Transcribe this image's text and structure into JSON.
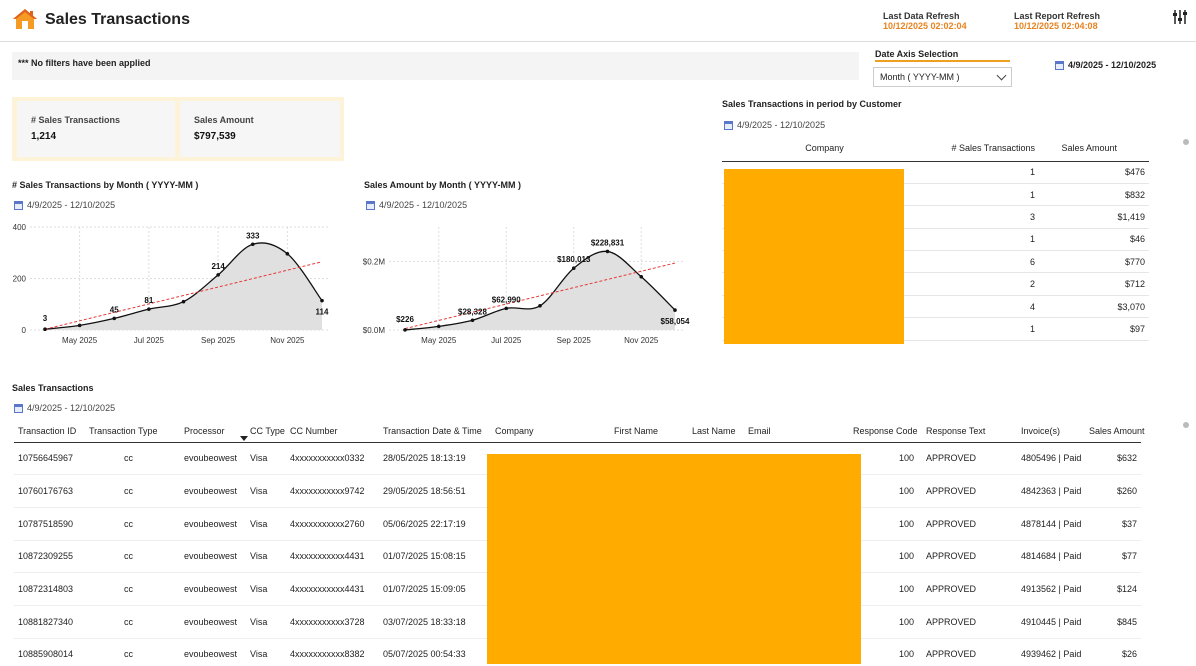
{
  "header": {
    "title": "Sales Transactions",
    "last_data_refresh_label": "Last Data Refresh",
    "last_data_refresh_value": "10/12/2025 02:02:04",
    "last_report_refresh_label": "Last Report Refresh",
    "last_report_refresh_value": "10/12/2025 02:04:08"
  },
  "filters": {
    "text": "*** No filters have been applied"
  },
  "date_axis": {
    "label": "Date Axis Selection",
    "selected": "Month ( YYYY-MM )"
  },
  "date_range": "4/9/2025 - 12/10/2025",
  "kpis": [
    {
      "label": "# Sales Transactions",
      "value": "1,214"
    },
    {
      "label": "Sales Amount",
      "value": "$797,539"
    }
  ],
  "chart_data": [
    {
      "type": "area",
      "title": "# Sales Transactions by Month ( YYYY-MM )",
      "subtitle": "4/9/2025 - 12/10/2025",
      "x": [
        "2025-04",
        "2025-05",
        "2025-06",
        "2025-07",
        "2025-08",
        "2025-09",
        "2025-10",
        "2025-11",
        "2025-12"
      ],
      "values": [
        3,
        18,
        45,
        81,
        110,
        214,
        333,
        296,
        114
      ],
      "data_labels": {
        "0": "3",
        "2": "45",
        "3": "81",
        "5": "214",
        "6": "333",
        "8": "114"
      },
      "tick_labels": [
        "May 2025",
        "Jul 2025",
        "Sep 2025",
        "Nov 2025"
      ],
      "y_ticks": [
        "0",
        "200",
        "400"
      ],
      "ylim": [
        0,
        400
      ],
      "trend_line": [
        3,
        265
      ],
      "grid": true
    },
    {
      "type": "area",
      "title": "Sales Amount by Month ( YYYY-MM )",
      "subtitle": "4/9/2025 - 12/10/2025",
      "x": [
        "2025-04",
        "2025-05",
        "2025-06",
        "2025-07",
        "2025-08",
        "2025-09",
        "2025-10",
        "2025-11",
        "2025-12"
      ],
      "values": [
        226,
        10500,
        28328,
        62990,
        70500,
        180013,
        228831,
        155000,
        58054
      ],
      "data_labels": {
        "0": "$226",
        "2": "$28,328",
        "3": "$62,990",
        "5": "$180,013",
        "6": "$228,831",
        "8": "$58,054"
      },
      "tick_labels": [
        "May 2025",
        "Jul 2025",
        "Sep 2025",
        "Nov 2025"
      ],
      "y_ticks": [
        "$0.0M",
        "$0.2M"
      ],
      "ylim": [
        0,
        300000
      ],
      "trend_line": [
        4000,
        195000
      ],
      "grid": true
    }
  ],
  "customer_table": {
    "title": "Sales Transactions in period by Customer",
    "date_range": "4/9/2025 - 12/10/2025",
    "columns": [
      "Company",
      "# Sales Transactions",
      "Sales Amount"
    ],
    "rows": [
      {
        "count": "1",
        "amount": "$476"
      },
      {
        "count": "1",
        "amount": "$832"
      },
      {
        "count": "3",
        "amount": "$1,419"
      },
      {
        "count": "1",
        "amount": "$46"
      },
      {
        "count": "6",
        "amount": "$770"
      },
      {
        "count": "2",
        "amount": "$712"
      },
      {
        "count": "4",
        "amount": "$3,070"
      },
      {
        "count": "1",
        "amount": "$97"
      }
    ]
  },
  "tx_table": {
    "title": "Sales Transactions",
    "date_range": "4/9/2025 - 12/10/2025",
    "columns": [
      "Transaction ID",
      "Transaction Type",
      "Processor",
      "CC Type",
      "CC Number",
      "Transaction Date & Time",
      "Company",
      "First Name",
      "Last Name",
      "Email",
      "Response Code",
      "Response Text",
      "Invoice(s)",
      "Sales Amount"
    ],
    "rows": [
      {
        "id": "10756645967",
        "type": "cc",
        "processor": "evoubeowest",
        "cc_type": "Visa",
        "cc_number": "4xxxxxxxxxxx0332",
        "datetime": "28/05/2025 18:13:19",
        "code": "100",
        "text": "APPROVED",
        "invoice": "4805496 | Paid",
        "amount": "$632"
      },
      {
        "id": "10760176763",
        "type": "cc",
        "processor": "evoubeowest",
        "cc_type": "Visa",
        "cc_number": "4xxxxxxxxxxx9742",
        "datetime": "29/05/2025 18:56:51",
        "code": "100",
        "text": "APPROVED",
        "invoice": "4842363 | Paid",
        "amount": "$260"
      },
      {
        "id": "10787518590",
        "type": "cc",
        "processor": "evoubeowest",
        "cc_type": "Visa",
        "cc_number": "4xxxxxxxxxxx2760",
        "datetime": "05/06/2025 22:17:19",
        "code": "100",
        "text": "APPROVED",
        "invoice": "4878144 | Paid",
        "amount": "$37"
      },
      {
        "id": "10872309255",
        "type": "cc",
        "processor": "evoubeowest",
        "cc_type": "Visa",
        "cc_number": "4xxxxxxxxxxx4431",
        "datetime": "01/07/2025 15:08:15",
        "code": "100",
        "text": "APPROVED",
        "invoice": "4814684 | Paid",
        "amount": "$77"
      },
      {
        "id": "10872314803",
        "type": "cc",
        "processor": "evoubeowest",
        "cc_type": "Visa",
        "cc_number": "4xxxxxxxxxxx4431",
        "datetime": "01/07/2025 15:09:05",
        "code": "100",
        "text": "APPROVED",
        "invoice": "4913562 | Paid",
        "amount": "$124"
      },
      {
        "id": "10881827340",
        "type": "cc",
        "processor": "evoubeowest",
        "cc_type": "Visa",
        "cc_number": "4xxxxxxxxxxx3728",
        "datetime": "03/07/2025 18:33:18",
        "code": "100",
        "text": "APPROVED",
        "invoice": "4910445 | Paid",
        "amount": "$845"
      },
      {
        "id": "10885908014",
        "type": "cc",
        "processor": "evoubeowest",
        "cc_type": "Visa",
        "cc_number": "4xxxxxxxxxxx8382",
        "datetime": "05/07/2025 00:54:33",
        "code": "100",
        "text": "APPROVED",
        "invoice": "4939462 | Paid",
        "amount": "$26"
      }
    ]
  },
  "colors": {
    "accent": "#e8821e",
    "redaction": "#ffab00",
    "trend": "#e53935",
    "area": "#e0e0e0"
  },
  "icons": [
    "home-icon",
    "calendar-icon",
    "filter-sliders-icon",
    "chevron-down-icon",
    "sort-down-icon"
  ]
}
